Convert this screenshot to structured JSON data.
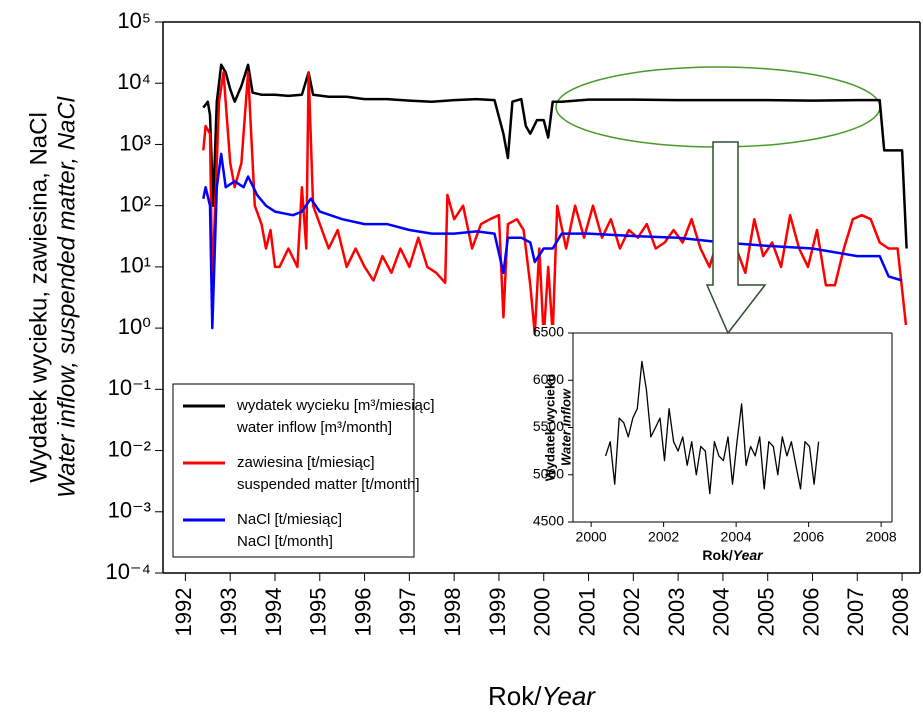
{
  "chart_data": [
    {
      "type": "line",
      "log_y": true,
      "ylabel": [
        "Wydatek wycieku, zawiesina, NaCl",
        "Water inflow, suspended matter, NaCl"
      ],
      "xlabel": [
        "Rok/",
        "Year"
      ],
      "xlim": [
        1991.5,
        2008.4
      ],
      "xticks": [
        1992,
        1993,
        1994,
        1995,
        1996,
        1997,
        1998,
        1999,
        2000,
        2001,
        2002,
        2003,
        2004,
        2005,
        2006,
        2007,
        2008
      ],
      "ylim": [
        0.0001,
        100000
      ],
      "yticks": [
        {
          "value": 100000,
          "label": "10⁵"
        },
        {
          "value": 10000,
          "label": "10⁴"
        },
        {
          "value": 1000,
          "label": "10³"
        },
        {
          "value": 100,
          "label": "10²"
        },
        {
          "value": 10,
          "label": "10¹"
        },
        {
          "value": 1,
          "label": "10⁰"
        },
        {
          "value": 0.1,
          "label": "10⁻¹"
        },
        {
          "value": 0.01,
          "label": "10⁻²"
        },
        {
          "value": 0.001,
          "label": "10⁻³"
        },
        {
          "value": 0.0001,
          "label": "10⁻⁴"
        }
      ],
      "legend": "lower left",
      "series": [
        {
          "name": "wydatek wycieku [m³/miesiąc]\nwater inflow [m³/month]",
          "color": "#000000",
          "x": [
            1992.4,
            1992.5,
            1992.55,
            1992.62,
            1992.7,
            1992.8,
            1992.9,
            1993.0,
            1993.1,
            1993.25,
            1993.4,
            1993.5,
            1993.7,
            1994.0,
            1994.3,
            1994.6,
            1994.75,
            1994.85,
            1995.2,
            1995.6,
            1996.0,
            1996.5,
            1997.0,
            1997.5,
            1998.0,
            1998.5,
            1998.9,
            1999.1,
            1999.2,
            1999.3,
            1999.5,
            1999.6,
            1999.7,
            1999.85,
            2000.0,
            2000.1,
            2000.2,
            2000.4,
            2001.0,
            2002.0,
            2003.0,
            2004.0,
            2005.0,
            2006.0,
            2007.0,
            2007.5,
            2007.6,
            2008.0,
            2008.1
          ],
          "values": [
            4000,
            5000,
            3000,
            100,
            5000,
            20000,
            15000,
            8000,
            5000,
            9000,
            20000,
            7000,
            6500,
            6500,
            6200,
            6500,
            15000,
            6500,
            6000,
            6000,
            5500,
            5500,
            5200,
            5000,
            5300,
            5500,
            5300,
            1500,
            600,
            5000,
            5500,
            2000,
            1500,
            2500,
            2500,
            1300,
            5000,
            5000,
            5400,
            5400,
            5300,
            5300,
            5300,
            5200,
            5300,
            5300,
            800,
            800,
            20
          ]
        },
        {
          "name": "zawiesina [t/miesiąc]\nsuspended matter [t/month]",
          "color": "#ff0000",
          "x": [
            1992.4,
            1992.45,
            1992.55,
            1992.6,
            1992.75,
            1992.85,
            1993.0,
            1993.1,
            1993.25,
            1993.4,
            1993.55,
            1993.7,
            1993.8,
            1993.9,
            1994.0,
            1994.1,
            1994.3,
            1994.5,
            1994.6,
            1994.7,
            1994.75,
            1994.85,
            1995.0,
            1995.2,
            1995.4,
            1995.6,
            1995.8,
            1996.0,
            1996.2,
            1996.4,
            1996.6,
            1996.8,
            1997.0,
            1997.2,
            1997.4,
            1997.6,
            1997.8,
            1997.85,
            1998.0,
            1998.2,
            1998.4,
            1998.6,
            1998.8,
            1999.0,
            1999.1,
            1999.2,
            1999.4,
            1999.55,
            1999.7,
            1999.8,
            1999.9,
            2000.0,
            2000.1,
            2000.2,
            2000.3,
            2000.5,
            2000.7,
            2000.9,
            2001.1,
            2001.3,
            2001.5,
            2001.7,
            2001.9,
            2002.1,
            2002.3,
            2002.5,
            2002.7,
            2002.9,
            2003.1,
            2003.3,
            2003.5,
            2003.7,
            2003.9,
            2004.1,
            2004.3,
            2004.5,
            2004.7,
            2004.9,
            2005.1,
            2005.3,
            2005.5,
            2005.7,
            2005.9,
            2006.1,
            2006.3,
            2006.5,
            2006.7,
            2006.9,
            2007.1,
            2007.3,
            2007.5,
            2007.7,
            2007.9,
            2008.1
          ],
          "values": [
            800,
            2000,
            1500,
            5,
            5000,
            15000,
            500,
            200,
            500,
            15000,
            100,
            50,
            20,
            40,
            10,
            10,
            20,
            10,
            200,
            20,
            15000,
            100,
            50,
            20,
            40,
            10,
            20,
            10,
            6,
            15,
            8,
            20,
            10,
            30,
            10,
            8,
            5.5,
            150,
            60,
            100,
            20,
            50,
            60,
            70,
            1.5,
            50,
            60,
            40,
            5,
            0.8,
            20,
            0.7,
            10,
            0.8,
            100,
            20,
            100,
            30,
            100,
            30,
            60,
            20,
            40,
            30,
            50,
            20,
            25,
            40,
            25,
            60,
            20,
            10,
            30,
            5,
            20,
            8,
            60,
            15,
            25,
            10,
            70,
            20,
            10,
            40,
            5,
            5,
            20,
            60,
            70,
            60,
            25,
            20,
            20,
            0.9
          ]
        },
        {
          "name": "NaCl [t/miesiąc]\nNaCl [t/month]",
          "color": "#0000ff",
          "x": [
            1992.4,
            1992.45,
            1992.55,
            1992.6,
            1992.7,
            1992.8,
            1992.9,
            1993.1,
            1993.3,
            1993.4,
            1993.6,
            1993.8,
            1994.0,
            1994.4,
            1994.6,
            1994.8,
            1995.0,
            1995.5,
            1996.0,
            1996.5,
            1997.0,
            1997.5,
            1998.0,
            1998.5,
            1998.9,
            1999.1,
            1999.2,
            1999.5,
            1999.7,
            1999.8,
            2000.0,
            2000.2,
            2000.4,
            2001.0,
            2002.0,
            2003.0,
            2004.0,
            2005.0,
            2006.0,
            2007.0,
            2007.5,
            2007.7,
            2008.0
          ],
          "values": [
            130,
            200,
            100,
            1,
            200,
            700,
            200,
            250,
            200,
            300,
            150,
            100,
            80,
            70,
            80,
            130,
            80,
            60,
            50,
            50,
            40,
            35,
            35,
            38,
            35,
            8,
            30,
            30,
            25,
            12,
            20,
            20,
            35,
            35,
            32,
            30,
            25,
            22,
            20,
            15,
            15,
            7,
            6
          ]
        }
      ]
    },
    {
      "type": "line",
      "log_y": false,
      "ylabel": [
        "Wydatek wycieku",
        "Water inflow"
      ],
      "xlabel": [
        "Rok/",
        "Year"
      ],
      "xlim": [
        1999.5,
        2008.3
      ],
      "xticks": [
        2000,
        2002,
        2004,
        2006,
        2008
      ],
      "ylim": [
        4500,
        6500
      ],
      "yticks": [
        4500,
        5000,
        5500,
        6000,
        6500
      ],
      "series": [
        {
          "color": "#000000",
          "x": [
            2000.4,
            2000.525,
            2000.65,
            2000.775,
            2000.9,
            2001.025,
            2001.15,
            2001.275,
            2001.4,
            2001.525,
            2001.65,
            2001.775,
            2001.9,
            2002.025,
            2002.15,
            2002.275,
            2002.4,
            2002.525,
            2002.65,
            2002.775,
            2002.9,
            2003.025,
            2003.15,
            2003.275,
            2003.4,
            2003.525,
            2003.65,
            2003.775,
            2003.9,
            2004.025,
            2004.15,
            2004.275,
            2004.4,
            2004.525,
            2004.65,
            2004.775,
            2004.9,
            2005.025,
            2005.15,
            2005.275,
            2005.4,
            2005.525,
            2005.65,
            2005.775,
            2005.9,
            2006.025,
            2006.15,
            2006.275
          ],
          "values": [
            5200,
            5350,
            4900,
            5600,
            5550,
            5400,
            5600,
            5700,
            6200,
            5900,
            5400,
            5500,
            5600,
            5150,
            5700,
            5350,
            5250,
            5400,
            5100,
            5350,
            5000,
            5300,
            5250,
            4800,
            5350,
            5200,
            5150,
            5400,
            4900,
            5350,
            5750,
            5100,
            5300,
            5200,
            5400,
            4850,
            5350,
            5300,
            5000,
            5400,
            5200,
            5350,
            5100,
            4850,
            5350,
            5300,
            4900,
            5350
          ]
        }
      ]
    }
  ]
}
